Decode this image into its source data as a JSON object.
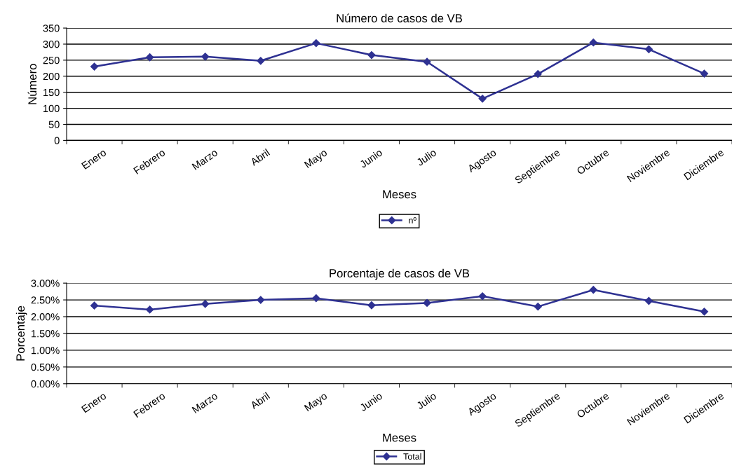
{
  "chart_data": [
    {
      "type": "line",
      "title": "Número de casos de VB",
      "xlabel": "Meses",
      "ylabel": "Número",
      "categories": [
        "Enero",
        "Febrero",
        "Marzo",
        "Abril",
        "Mayo",
        "Junio",
        "Julio",
        "Agosto",
        "Septiembre",
        "Octubre",
        "Noviembre",
        "Diciembre"
      ],
      "series": [
        {
          "name": "nº",
          "color": "#2e3192",
          "values": [
            230,
            259,
            261,
            248,
            303,
            266,
            245,
            130,
            207,
            305,
            284,
            208
          ]
        }
      ],
      "ylim": [
        0,
        350
      ],
      "yticks": [
        0,
        50,
        100,
        150,
        200,
        250,
        300,
        350
      ],
      "grid": "y",
      "legend": "bottom",
      "marker": "diamond",
      "line_style": "solid"
    },
    {
      "type": "line",
      "title": "Porcentaje de casos de VB",
      "xlabel": "Meses",
      "ylabel": "Porcentaje",
      "categories": [
        "Enero",
        "Febrero",
        "Marzo",
        "Abril",
        "Mayo",
        "Junio",
        "Julio",
        "Agosto",
        "Septiembre",
        "Octubre",
        "Noviembre",
        "Diciembre"
      ],
      "series": [
        {
          "name": "Total",
          "color": "#2e3192",
          "values": [
            2.33,
            2.21,
            2.38,
            2.5,
            2.55,
            2.34,
            2.41,
            2.61,
            2.3,
            2.8,
            2.47,
            2.15
          ]
        }
      ],
      "ylim": [
        0,
        3
      ],
      "yticks": [
        {
          "value": 0,
          "label": "0.00%"
        },
        {
          "value": 0.5,
          "label": "0.50%"
        },
        {
          "value": 1,
          "label": "1.00%"
        },
        {
          "value": 1.5,
          "label": "1.50%"
        },
        {
          "value": 2,
          "label": "2.00%"
        },
        {
          "value": 2.5,
          "label": "2.50%"
        },
        {
          "value": 3,
          "label": "3.00%"
        }
      ],
      "grid": "y",
      "legend": "bottom",
      "marker": "diamond",
      "line_style": "solid"
    }
  ]
}
